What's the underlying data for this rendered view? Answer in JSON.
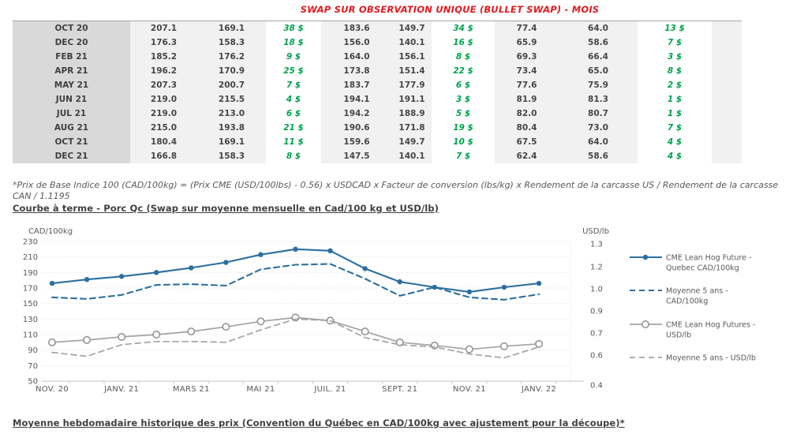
{
  "page": {
    "title": "SWAP SUR OBSERVATION UNIQUE (BULLET SWAP) - MOIS",
    "footnote": "*Prix de Base Indice 100 (CAD/100kg) = (Prix CME (USD/100lbs) - 0.56) x USDCAD x Facteur de conversion (lbs/kg) x Rendement de la carcasse US / Rendement de la carcasse CAN / 1.1195",
    "chart_heading": "Courbe à terme - Porc Qc (Swap sur moyenne mensuelle en Cad/100 kg et USD/lb)",
    "bottom_heading": "Moyenne hebdomadaire historique des prix (Convention du Québec en CAD/100kg avec ajustement pour la découpe)*"
  },
  "colors": {
    "title_red": "#e01b22",
    "diff_green": "#00a24d",
    "month_bg": "#d9d9d9",
    "value_bg": "#f1f1f1",
    "axis_text": "#595959",
    "blue": "#2b6f9e",
    "gray": "#a3a3a3",
    "grid": "#dcdcdc"
  },
  "table": {
    "rows": [
      {
        "month": "OCT 20",
        "values": [
          "207.1",
          "169.1",
          "183.6",
          "149.7",
          "77.4",
          "64.0"
        ],
        "diffs": [
          "38 $",
          "34 $",
          "13 $"
        ]
      },
      {
        "month": "DEC 20",
        "values": [
          "176.3",
          "158.3",
          "156.0",
          "140.1",
          "65.9",
          "58.6"
        ],
        "diffs": [
          "18 $",
          "16 $",
          "7 $"
        ]
      },
      {
        "month": "FEB 21",
        "values": [
          "185.2",
          "176.2",
          "164.0",
          "156.1",
          "69.3",
          "66.4"
        ],
        "diffs": [
          "9 $",
          "8 $",
          "3 $"
        ]
      },
      {
        "month": "APR 21",
        "values": [
          "196.2",
          "170.9",
          "173.8",
          "151.4",
          "73.4",
          "65.0"
        ],
        "diffs": [
          "25 $",
          "22 $",
          "8 $"
        ]
      },
      {
        "month": "MAY 21",
        "values": [
          "207.3",
          "200.7",
          "183.7",
          "177.9",
          "77.6",
          "75.9"
        ],
        "diffs": [
          "7 $",
          "6 $",
          "2 $"
        ]
      },
      {
        "month": "JUN 21",
        "values": [
          "219.0",
          "215.5",
          "194.1",
          "191.1",
          "81.9",
          "81.3"
        ],
        "diffs": [
          "4 $",
          "3 $",
          "1 $"
        ]
      },
      {
        "month": "JUL 21",
        "values": [
          "219.0",
          "213.0",
          "194.2",
          "188.9",
          "82.0",
          "80.7"
        ],
        "diffs": [
          "6 $",
          "5 $",
          "1 $"
        ]
      },
      {
        "month": "AUG 21",
        "values": [
          "215.0",
          "193.8",
          "190.6",
          "171.8",
          "80.4",
          "73.0"
        ],
        "diffs": [
          "21 $",
          "19 $",
          "7 $"
        ]
      },
      {
        "month": "OCT 21",
        "values": [
          "180.4",
          "169.1",
          "159.6",
          "149.7",
          "67.5",
          "64.0"
        ],
        "diffs": [
          "11 $",
          "10 $",
          "4 $"
        ]
      },
      {
        "month": "DEC 21",
        "values": [
          "166.8",
          "158.3",
          "147.5",
          "140.1",
          "62.4",
          "58.6"
        ],
        "diffs": [
          "8 $",
          "7 $",
          "4 $"
        ]
      }
    ]
  },
  "chart_data": {
    "type": "line",
    "categories": [
      "NOV 20",
      "DEC 20",
      "JANV 21",
      "FEVR 21",
      "MARS 21",
      "AVR 21",
      "MAI 21",
      "JUIN 21",
      "JUIL 21",
      "AOUT 21",
      "SEPT 21",
      "OCT 21",
      "NOV 21",
      "DEC 21",
      "JANV 22"
    ],
    "x_labels": [
      "NOV. 20",
      "JANV. 21",
      "MARS 21",
      "MAI 21",
      "JUIL. 21",
      "SEPT. 21",
      "NOV. 21",
      "JANV. 22"
    ],
    "left_axis": {
      "title": "CAD/100kg",
      "ticks": [
        "230",
        "210",
        "190",
        "170",
        "150",
        "130",
        "110",
        "90",
        "70",
        "50"
      ],
      "ylim": [
        50,
        230
      ]
    },
    "right_axis": {
      "title": "USD/lb",
      "ticks": [
        "1.3",
        "1.2",
        "1.0",
        "0.9",
        "0.7",
        "0.6",
        "0.4"
      ],
      "ylim": [
        0.4,
        1.3
      ]
    },
    "grid": true,
    "legend_position": "right",
    "series": [
      {
        "name": "CME Lean Hog Future - Quebec CAD/100kg",
        "axis": "left",
        "style": "solid",
        "marker": "filled-circle",
        "color": "#2b6f9e",
        "values": [
          176,
          181,
          185,
          190,
          196,
          203,
          213,
          220,
          218,
          195,
          178,
          171,
          165,
          171,
          176
        ]
      },
      {
        "name": "Moyenne 5 ans - CAD/100kg",
        "axis": "left",
        "style": "dashed",
        "marker": "none",
        "color": "#2b6f9e",
        "values": [
          158,
          156,
          161,
          174,
          175,
          173,
          194,
          200,
          201,
          182,
          160,
          171,
          158,
          155,
          162
        ]
      },
      {
        "name": "CME Lean Hog Futures - USD/lb",
        "axis": "right",
        "style": "solid",
        "marker": "open-circle",
        "color": "#a3a3a3",
        "values": [
          0.65,
          0.665,
          0.685,
          0.7,
          0.72,
          0.75,
          0.785,
          0.81,
          0.79,
          0.72,
          0.65,
          0.63,
          0.605,
          0.625,
          0.64
        ]
      },
      {
        "name": "Moyenne 5 ans - USD/lb",
        "axis": "right",
        "style": "dashed",
        "marker": "none",
        "color": "#a3a3a3",
        "values": [
          0.585,
          0.56,
          0.635,
          0.655,
          0.655,
          0.65,
          0.73,
          0.8,
          0.79,
          0.68,
          0.635,
          0.62,
          0.575,
          0.55,
          0.62
        ]
      }
    ]
  }
}
